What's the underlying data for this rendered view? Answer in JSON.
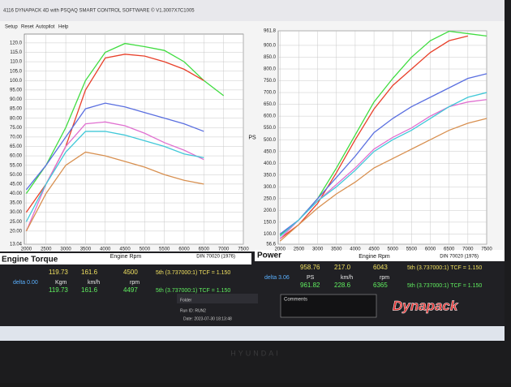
{
  "window": {
    "title": "4116 DYNAPACK 4D with PSQAQ SMART CONTROL SOFTWARE © V1.3007X7C1005",
    "menu": [
      "Setup",
      "Reset",
      "Autopilot",
      "Help"
    ]
  },
  "chart_data": [
    {
      "type": "line",
      "title": "Engine Torque",
      "xlabel": "Engine Rpm",
      "standard": "DIN 70020 (1976)",
      "x": [
        2000,
        2500,
        3000,
        3500,
        4000,
        4500,
        5000,
        5500,
        6000,
        6500,
        7000
      ],
      "xlim": [
        1950,
        7500
      ],
      "xticks": [
        2000,
        2500,
        3000,
        3500,
        4000,
        4500,
        5000,
        5500,
        6000,
        6500,
        7000,
        7500
      ],
      "ylim": [
        13.04,
        124.7
      ],
      "yticks": [
        13.04,
        {
          "value": 20,
          "label": "20.00"
        },
        {
          "value": 25,
          "label": "25.00"
        },
        {
          "value": 30,
          "label": "30.00"
        },
        {
          "value": 35,
          "label": "35.00"
        },
        {
          "value": 40,
          "label": "40.00"
        },
        {
          "value": 45,
          "label": "45.00"
        },
        {
          "value": 50,
          "label": "50.00"
        },
        {
          "value": 55,
          "label": "55.00"
        },
        {
          "value": 60,
          "label": "60.00"
        },
        {
          "value": 65,
          "label": "65.00"
        },
        {
          "value": 70,
          "label": "70.00"
        },
        {
          "value": 75,
          "label": "75.00"
        },
        {
          "value": 80,
          "label": "80.00"
        },
        {
          "value": 85,
          "label": "85.00"
        },
        {
          "value": 90,
          "label": "90.00"
        },
        {
          "value": 95,
          "label": "95.00"
        },
        {
          "value": 100,
          "label": "100.0"
        },
        {
          "value": 105,
          "label": "105.0"
        },
        {
          "value": 110,
          "label": "110.0"
        },
        {
          "value": 115,
          "label": "115.0"
        },
        {
          "value": 120,
          "label": "120.0"
        }
      ],
      "grid": true,
      "series": [
        {
          "color": "#40dc40",
          "values": [
            40,
            55,
            75,
            100,
            115,
            119.7,
            118,
            116,
            110,
            100,
            92
          ]
        },
        {
          "color": "#e8402a",
          "values": [
            30,
            45,
            65,
            95,
            112,
            114,
            113,
            110,
            106,
            100,
            null
          ]
        },
        {
          "color": "#5a6fe0",
          "values": [
            42,
            55,
            70,
            85,
            88,
            86,
            83,
            80,
            77,
            73,
            null
          ]
        },
        {
          "color": "#e070d0",
          "values": [
            20,
            45,
            65,
            77,
            78,
            76,
            72,
            67,
            63,
            58,
            null
          ]
        },
        {
          "color": "#40c8d8",
          "values": [
            25,
            45,
            62,
            73,
            73,
            71,
            68,
            65,
            61,
            59,
            null
          ]
        },
        {
          "color": "#d89050",
          "values": [
            20,
            40,
            55,
            62,
            60,
            57,
            54,
            50,
            47,
            45,
            null
          ]
        }
      ]
    },
    {
      "type": "line",
      "title": "Power",
      "xlabel": "Engine Rpm",
      "ylabel": "PS",
      "standard": "DIN 70020 (1976)",
      "x": [
        2000,
        2500,
        3000,
        3500,
        4000,
        4500,
        5000,
        5500,
        6000,
        6500,
        7000,
        7500
      ],
      "xlim": [
        1950,
        7500
      ],
      "xticks": [
        2000,
        2500,
        3000,
        3500,
        4000,
        4500,
        5000,
        5500,
        6000,
        6500,
        7000,
        7500
      ],
      "ylim": [
        56.6,
        961.8
      ],
      "yticks": [
        56.6,
        {
          "value": 100,
          "label": "100.0"
        },
        {
          "value": 150,
          "label": "150.0"
        },
        {
          "value": 200,
          "label": "200.0"
        },
        {
          "value": 250,
          "label": "250.0"
        },
        {
          "value": 300,
          "label": "300.0"
        },
        {
          "value": 350,
          "label": "350.0"
        },
        {
          "value": 400,
          "label": "400.0"
        },
        {
          "value": 450,
          "label": "450.0"
        },
        {
          "value": 500,
          "label": "500.0"
        },
        {
          "value": 550,
          "label": "550.0"
        },
        {
          "value": 600,
          "label": "600.0"
        },
        {
          "value": 650,
          "label": "650.0"
        },
        {
          "value": 700,
          "label": "700.0"
        },
        {
          "value": 750,
          "label": "750.0"
        },
        {
          "value": 800,
          "label": "800.0"
        },
        {
          "value": 850,
          "label": "850.0"
        },
        {
          "value": 900,
          "label": "900.0"
        },
        961.8
      ],
      "grid": true,
      "series": [
        {
          "color": "#40dc40",
          "values": [
            95,
            160,
            250,
            380,
            520,
            660,
            760,
            850,
            920,
            960,
            950,
            940
          ]
        },
        {
          "color": "#e8402a",
          "values": [
            80,
            140,
            230,
            360,
            500,
            630,
            730,
            800,
            870,
            920,
            940,
            null
          ]
        },
        {
          "color": "#5a6fe0",
          "values": [
            100,
            160,
            250,
            340,
            430,
            530,
            590,
            640,
            680,
            720,
            760,
            780
          ]
        },
        {
          "color": "#e070d0",
          "values": [
            80,
            160,
            240,
            310,
            380,
            460,
            510,
            550,
            600,
            640,
            660,
            670
          ]
        },
        {
          "color": "#40c8d8",
          "values": [
            90,
            160,
            240,
            300,
            370,
            450,
            500,
            540,
            590,
            640,
            680,
            700
          ]
        },
        {
          "color": "#d89050",
          "values": [
            70,
            140,
            210,
            270,
            320,
            380,
            420,
            460,
            500,
            540,
            570,
            590
          ]
        }
      ]
    }
  ],
  "readouts": [
    {
      "row1": [
        "119.73",
        "161.6",
        "4500",
        "5th (3.737000:1) TCF = 1.150"
      ],
      "delta": "delta 0.00",
      "units": [
        "Kgm",
        "km/h",
        "rpm"
      ],
      "row2": [
        "119.73",
        "161.6",
        "4497",
        "5th (3.737000:1) TCF = 1.150"
      ]
    },
    {
      "row1": [
        "958.76",
        "217.0",
        "6043",
        "5th (3.737000:1) TCF = 1.150"
      ],
      "delta": "delta 3.06",
      "units": [
        "PS",
        "km/h",
        "rpm"
      ],
      "row2": [
        "961.82",
        "228.6",
        "6365",
        "5th (3.737000:1) TCF = 1.150"
      ]
    }
  ],
  "info": {
    "folder": "Folder",
    "run": "Run ID: RUN2",
    "date": "Date: 2023-07-30 18:13:48",
    "comments": "Comments",
    "logo": "Dynapack"
  },
  "monitor": "HYUNDAI"
}
